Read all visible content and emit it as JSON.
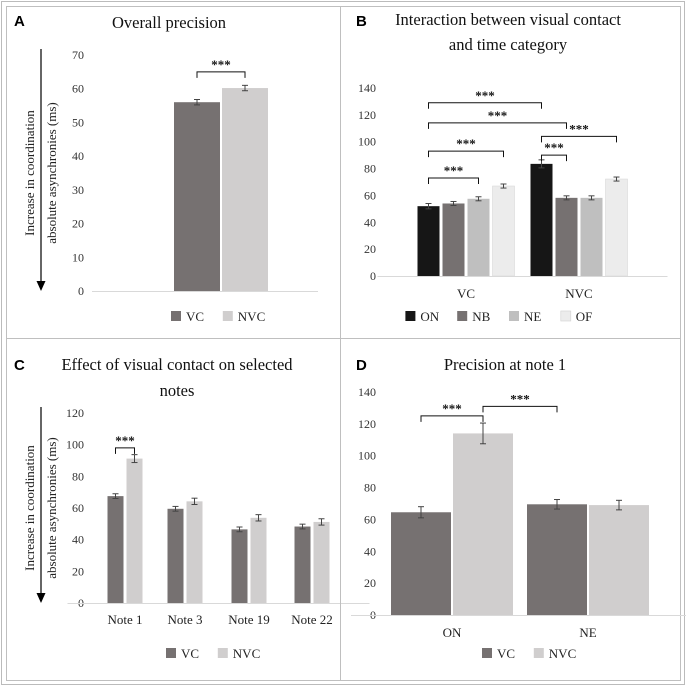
{
  "figure": {
    "y_axis_label_line1": "Increase in coordination",
    "y_axis_label_line2": "absolute asynchronies (ms)"
  },
  "chart_data": [
    {
      "panel": "A",
      "type": "bar",
      "title": [
        "Overall precision"
      ],
      "categories": [
        ""
      ],
      "series": [
        {
          "name": "VC",
          "values": [
            56
          ],
          "errors": [
            0.8
          ],
          "color": "#767171"
        },
        {
          "name": "NVC",
          "values": [
            60.2
          ],
          "errors": [
            0.8
          ],
          "color": "#d0cece"
        }
      ],
      "ylim": [
        0,
        70
      ],
      "yticks": [
        0,
        10,
        20,
        30,
        40,
        50,
        60,
        70
      ],
      "ylabel": "Increase in coordination absolute asynchronies (ms)",
      "significance": [
        {
          "label": "***",
          "from": [
            0,
            0
          ],
          "to": [
            0,
            1
          ],
          "y": 65
        }
      ]
    },
    {
      "panel": "B",
      "type": "bar",
      "title": [
        "Interaction between visual contact",
        "and time category"
      ],
      "categories": [
        "VC",
        "NVC"
      ],
      "series": [
        {
          "name": "ON",
          "values": [
            52,
            83.5
          ],
          "errors": [
            2,
            3
          ],
          "color": "#161616"
        },
        {
          "name": "NB",
          "values": [
            54,
            58.2
          ],
          "errors": [
            1.5,
            1.5
          ],
          "color": "#767171"
        },
        {
          "name": "NE",
          "values": [
            57.5,
            58.2
          ],
          "errors": [
            1.5,
            1.5
          ],
          "color": "#bfbfbf"
        },
        {
          "name": "OF",
          "values": [
            67,
            72.2
          ],
          "errors": [
            1.5,
            1.5
          ],
          "color": "#ececec"
        }
      ],
      "ylim": [
        0,
        140
      ],
      "yticks": [
        0,
        20,
        40,
        60,
        80,
        100,
        120,
        140
      ],
      "ylabel": "",
      "significance": [
        {
          "label": "***",
          "from": [
            0,
            0
          ],
          "to": [
            1,
            0
          ],
          "y": 129
        },
        {
          "label": "***",
          "from": [
            0,
            0
          ],
          "to": [
            1,
            1
          ],
          "y": 114
        },
        {
          "label": "***",
          "from": [
            0,
            0
          ],
          "to": [
            0,
            3
          ],
          "y": 93
        },
        {
          "label": "***",
          "from": [
            0,
            0
          ],
          "to": [
            0,
            2
          ],
          "y": 73
        },
        {
          "label": "***",
          "from": [
            1,
            0
          ],
          "to": [
            1,
            3
          ],
          "y": 104
        },
        {
          "label": "***",
          "from": [
            1,
            0
          ],
          "to": [
            1,
            1
          ],
          "y": 90
        }
      ]
    },
    {
      "panel": "C",
      "type": "bar",
      "title": [
        "Effect of visual contact on selected",
        "notes"
      ],
      "categories": [
        "Note 1",
        "Note 3",
        "Note 19",
        "Note 22"
      ],
      "series": [
        {
          "name": "VC",
          "values": [
            67.5,
            59.5,
            46.5,
            48.3
          ],
          "errors": [
            1.5,
            1.5,
            1.5,
            1.5
          ],
          "color": "#767171"
        },
        {
          "name": "NVC",
          "values": [
            91.2,
            64.2,
            53.8,
            51.2
          ],
          "errors": [
            2.5,
            2,
            2,
            2
          ],
          "color": "#d0cece"
        }
      ],
      "ylim": [
        0,
        120
      ],
      "yticks": [
        0,
        20,
        40,
        60,
        80,
        100,
        120
      ],
      "ylabel": "Increase in coordination absolute asynchronies (ms)",
      "significance": [
        {
          "label": "***",
          "from": [
            0,
            0
          ],
          "to": [
            0,
            1
          ],
          "y": 98
        }
      ]
    },
    {
      "panel": "D",
      "type": "bar",
      "title": [
        "Precision at note 1"
      ],
      "categories": [
        "ON",
        "NE"
      ],
      "series": [
        {
          "name": "VC",
          "values": [
            64.5,
            69.5
          ],
          "errors": [
            3.5,
            3
          ],
          "color": "#767171"
        },
        {
          "name": "NVC",
          "values": [
            114,
            69
          ],
          "errors": [
            6.5,
            3
          ],
          "color": "#d0cece"
        }
      ],
      "ylim": [
        0,
        140
      ],
      "yticks": [
        0,
        20,
        40,
        60,
        80,
        100,
        120,
        140
      ],
      "ylabel": "",
      "significance": [
        {
          "label": "***",
          "from": [
            0,
            0
          ],
          "to": [
            0,
            1
          ],
          "y": 125
        },
        {
          "label": "***",
          "from": [
            0,
            1
          ],
          "to": [
            1,
            0
          ],
          "y": 131
        }
      ]
    }
  ]
}
